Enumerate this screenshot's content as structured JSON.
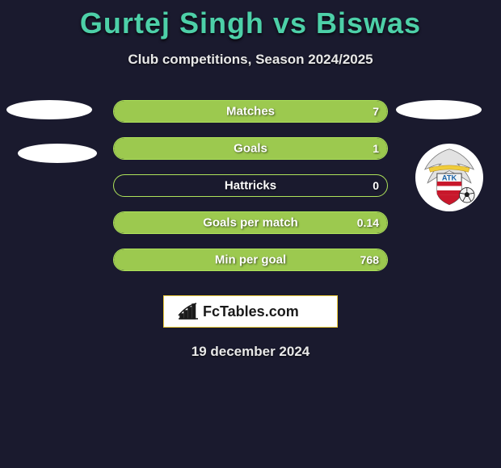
{
  "title": {
    "player1": "Gurtej Singh",
    "vs": "vs",
    "player2": "Biswas"
  },
  "subtitle": "Club competitions, Season 2024/2025",
  "stats": [
    {
      "label": "Matches",
      "value_right": "7",
      "fill_pct": 100
    },
    {
      "label": "Goals",
      "value_right": "1",
      "fill_pct": 100
    },
    {
      "label": "Hattricks",
      "value_right": "0",
      "fill_pct": 0
    },
    {
      "label": "Goals per match",
      "value_right": "0.14",
      "fill_pct": 100
    },
    {
      "label": "Min per goal",
      "value_right": "768",
      "fill_pct": 100
    }
  ],
  "brand": "FcTables.com",
  "date": "19 december 2024",
  "colors": {
    "background": "#1a1a2e",
    "title": "#4dd0a8",
    "bar_border": "#aee35a",
    "bar_fill": "#9cc94f",
    "text_light": "#e8e8e8",
    "brand_box_bg": "#ffffff",
    "brand_box_border": "#f0cc3a"
  },
  "badge": {
    "eagle_body": "#e0e0e0",
    "eagle_outline": "#6a6a6a",
    "shield_top": "#f4f4f4",
    "shield_stripes": [
      "#c8172b",
      "#ffffff",
      "#c8172b",
      "#ffffff",
      "#c8172b"
    ],
    "atk_text": "ATK",
    "atk_color": "#1a62a6",
    "ball_color": "#1d1d1d",
    "ribbon": "#f0cc3a"
  }
}
